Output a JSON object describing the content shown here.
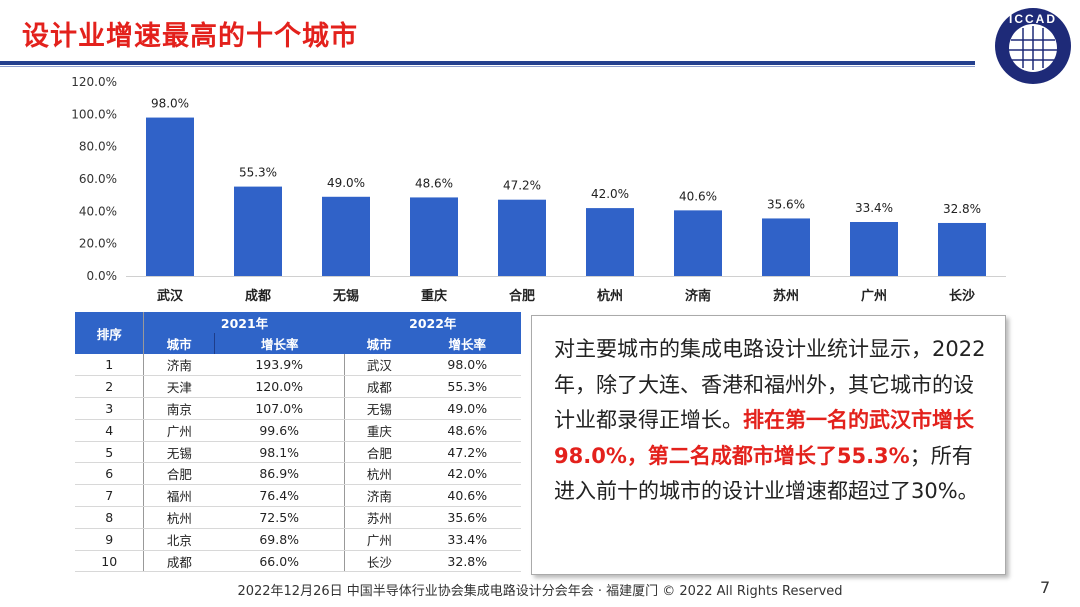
{
  "title": "设计业增速最高的十个城市",
  "logo": {
    "text": "ICCAD",
    "subtext": "中国半导体行业协会集成电路设计分会"
  },
  "chart_data": {
    "type": "bar",
    "categories": [
      "武汉",
      "成都",
      "无锡",
      "重庆",
      "合肥",
      "杭州",
      "济南",
      "苏州",
      "广州",
      "长沙"
    ],
    "values": [
      98.0,
      55.3,
      49.0,
      48.6,
      47.2,
      42.0,
      40.6,
      35.6,
      33.4,
      32.8
    ],
    "data_labels": [
      "98.0%",
      "55.3%",
      "49.0%",
      "48.6%",
      "47.2%",
      "42.0%",
      "40.6%",
      "35.6%",
      "33.4%",
      "32.8%"
    ],
    "yticks": [
      "0.0%",
      "20.0%",
      "40.0%",
      "60.0%",
      "80.0%",
      "100.0%",
      "120.0%"
    ],
    "ylim": [
      0,
      120
    ],
    "grid": false,
    "color": "#3062c8"
  },
  "table": {
    "rank_header": "排序",
    "year1": "2021年",
    "year2": "2022年",
    "city_header": "城市",
    "rate_header": "增长率",
    "rows": [
      [
        "1",
        "济南",
        "193.9%",
        "武汉",
        "98.0%"
      ],
      [
        "2",
        "天津",
        "120.0%",
        "成都",
        "55.3%"
      ],
      [
        "3",
        "南京",
        "107.0%",
        "无锡",
        "49.0%"
      ],
      [
        "4",
        "广州",
        "99.6%",
        "重庆",
        "48.6%"
      ],
      [
        "5",
        "无锡",
        "98.1%",
        "合肥",
        "47.2%"
      ],
      [
        "6",
        "合肥",
        "86.9%",
        "杭州",
        "42.0%"
      ],
      [
        "7",
        "福州",
        "76.4%",
        "济南",
        "40.6%"
      ],
      [
        "8",
        "杭州",
        "72.5%",
        "苏州",
        "35.6%"
      ],
      [
        "9",
        "北京",
        "69.8%",
        "广州",
        "33.4%"
      ],
      [
        "10",
        "成都",
        "66.0%",
        "长沙",
        "32.8%"
      ]
    ]
  },
  "textbox": {
    "part1": "对主要城市的集成电路设计业统计显示，2022年，除了大连、香港和福州外，其它城市的设计业都录得正增长。",
    "highlight": "排在第一名的武汉市增长98.0%，第二名成都市增长了55.3%",
    "part2": "；所有进入前十的城市的设计业增速都超过了30%。"
  },
  "footer": "2022年12月26日 中国半导体行业协会集成电路设计分会年会 · 福建厦门 © 2022 All Rights Reserved",
  "page_number": "7",
  "colors": {
    "title": "#e3211c",
    "accent": "#24408e",
    "bar": "#3062c8",
    "header": "#2f64c8"
  }
}
